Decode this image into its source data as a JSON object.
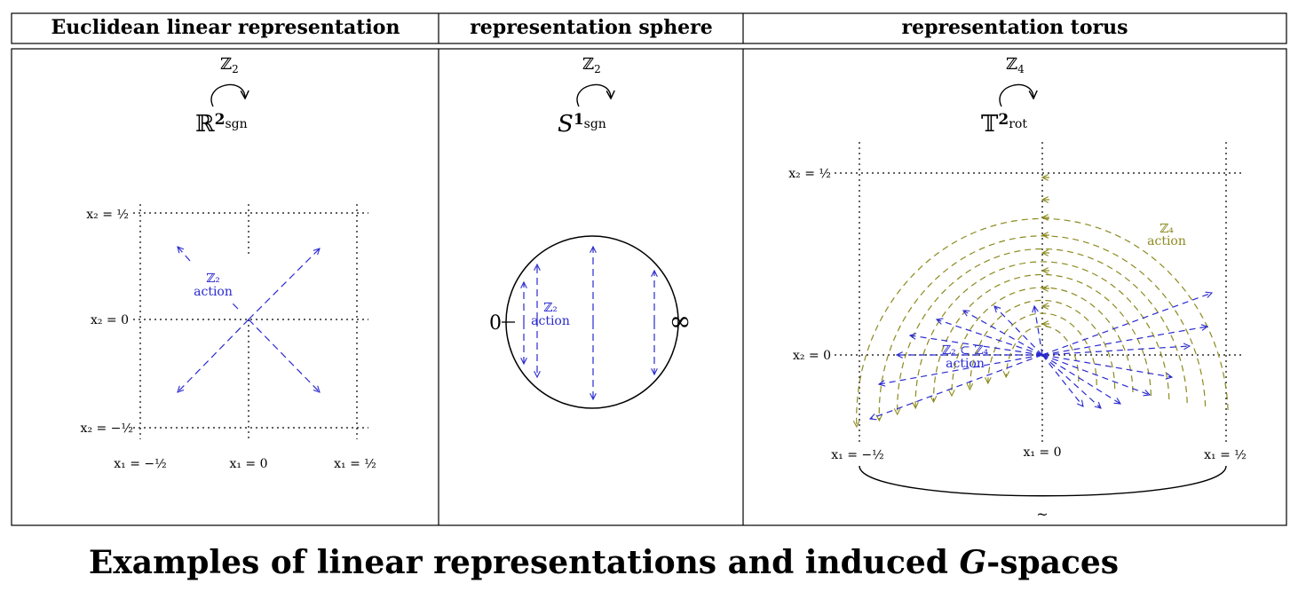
{
  "headers": [
    "Euclidean linear representation",
    "representation sphere",
    "representation torus"
  ],
  "panels": [
    {
      "group": {
        "base": "ℤ",
        "sub": "2"
      },
      "space": {
        "base": "ℝ",
        "sup": "2",
        "sub": "sgn"
      },
      "y_labels": [
        "x₂ = ½",
        "x₂ = 0",
        "x₂ = −½"
      ],
      "x_labels": [
        "x₁ = −½",
        "x₁ = 0",
        "x₁ = ½"
      ],
      "action": [
        "ℤ₂",
        "action"
      ]
    },
    {
      "group": {
        "base": "ℤ",
        "sub": "2"
      },
      "space": {
        "base": "S",
        "sup": "1",
        "sub": "sgn"
      },
      "left_point": "0",
      "right_point": "∞",
      "action": [
        "ℤ₂",
        "action"
      ]
    },
    {
      "group": {
        "base": "ℤ",
        "sub": "4"
      },
      "space": {
        "base": "𝕋",
        "sup": "2",
        "sub": "rot"
      },
      "y_labels": [
        "x₂ = ½",
        "x₂ = 0"
      ],
      "x_labels": [
        "x₁ = −½",
        "x₁ = 0",
        "x₁ = ½"
      ],
      "action_inner": [
        "ℤ₂ ⊂ ℤ₄",
        "action"
      ],
      "action_outer": [
        "ℤ₄",
        "action"
      ],
      "identification": "~"
    }
  ],
  "caption": {
    "before": "Examples of linear representations and induced ",
    "italic": "G",
    "after": "-spaces"
  }
}
